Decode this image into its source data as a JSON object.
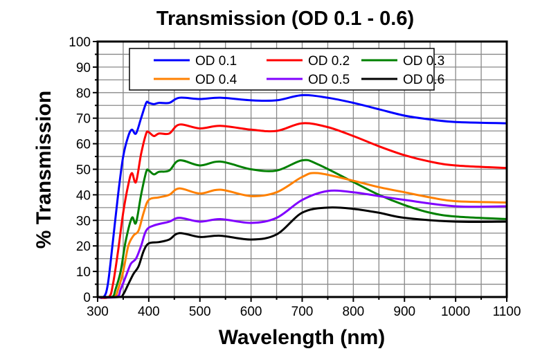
{
  "chart_data": {
    "type": "line",
    "title": "Transmission (OD 0.1 - 0.6)",
    "xlabel": "Wavelength (nm)",
    "ylabel": "% Transmission",
    "xlim": [
      300,
      1100
    ],
    "ylim": [
      0,
      100
    ],
    "xticks": [
      300,
      400,
      500,
      600,
      700,
      800,
      900,
      1000,
      1100
    ],
    "yticks": [
      0,
      10,
      20,
      30,
      40,
      50,
      60,
      70,
      80,
      90,
      100
    ],
    "grid": true,
    "legend_placement": "top-center",
    "series": [
      {
        "name": "OD 0.1",
        "color": "#0000ff",
        "x": [
          300,
          312,
          320,
          330,
          340,
          350,
          360,
          367,
          375,
          385,
          395,
          400,
          410,
          420,
          440,
          460,
          500,
          540,
          600,
          650,
          700,
          750,
          800,
          850,
          900,
          950,
          1000,
          1100
        ],
        "y": [
          0,
          0,
          5,
          22,
          40,
          55,
          63,
          65.5,
          64,
          70,
          76,
          76,
          75.5,
          76,
          76,
          78,
          77.5,
          78,
          77,
          77,
          79,
          78,
          76,
          73.5,
          71,
          69.5,
          68.5,
          68
        ]
      },
      {
        "name": "OD 0.2",
        "color": "#ff0000",
        "x": [
          300,
          322,
          330,
          340,
          350,
          360,
          367,
          375,
          385,
          395,
          400,
          410,
          420,
          440,
          460,
          500,
          540,
          600,
          650,
          700,
          750,
          800,
          850,
          900,
          950,
          1000,
          1100
        ],
        "y": [
          0,
          0,
          5,
          18,
          33,
          44,
          48.5,
          45,
          56,
          64,
          64.5,
          63,
          64,
          64,
          67.5,
          66,
          67,
          65.5,
          65,
          68,
          66.5,
          63,
          59,
          55.5,
          53,
          51.5,
          50.5
        ]
      },
      {
        "name": "OD 0.3",
        "color": "#008000",
        "x": [
          300,
          328,
          335,
          345,
          355,
          367,
          375,
          385,
          395,
          400,
          410,
          420,
          440,
          460,
          500,
          540,
          600,
          650,
          700,
          730,
          800,
          850,
          900,
          950,
          1000,
          1100
        ],
        "y": [
          0,
          0,
          3,
          10,
          22,
          31,
          29,
          40,
          49,
          49.5,
          48,
          49,
          49.5,
          53.5,
          51.5,
          53,
          50,
          49.5,
          53.5,
          52,
          45,
          40,
          36,
          33,
          31.5,
          30.5
        ]
      },
      {
        "name": "OD 0.4",
        "color": "#ff8000",
        "x": [
          300,
          332,
          340,
          350,
          360,
          370,
          380,
          390,
          400,
          420,
          440,
          460,
          500,
          540,
          600,
          650,
          700,
          730,
          800,
          850,
          900,
          950,
          1000,
          1100
        ],
        "y": [
          0,
          0,
          3,
          10,
          20,
          24,
          26,
          33,
          38,
          39,
          40,
          42.5,
          40.5,
          42,
          39.5,
          41,
          47,
          48.5,
          45.5,
          43,
          41,
          39,
          37.5,
          37
        ]
      },
      {
        "name": "OD 0.5",
        "color": "#8000ff",
        "x": [
          300,
          337,
          345,
          355,
          365,
          375,
          385,
          395,
          410,
          440,
          460,
          500,
          540,
          600,
          650,
          700,
          750,
          800,
          850,
          900,
          1000,
          1100
        ],
        "y": [
          0,
          0,
          3,
          8,
          13,
          15,
          20,
          26,
          28,
          29.5,
          31,
          29.5,
          30.5,
          29,
          31,
          38,
          41.5,
          41,
          39.5,
          38,
          35.5,
          35.5
        ]
      },
      {
        "name": "OD 0.6",
        "color": "#000000",
        "x": [
          300,
          342,
          350,
          360,
          370,
          380,
          390,
          400,
          420,
          440,
          460,
          500,
          540,
          600,
          650,
          700,
          750,
          800,
          850,
          900,
          1000,
          1100
        ],
        "y": [
          0,
          0,
          1,
          5,
          9,
          12,
          18,
          21,
          21.5,
          22.5,
          25,
          23.5,
          24,
          22.5,
          24.5,
          33,
          35,
          34.5,
          33,
          31,
          29.5,
          29.5
        ]
      }
    ]
  }
}
